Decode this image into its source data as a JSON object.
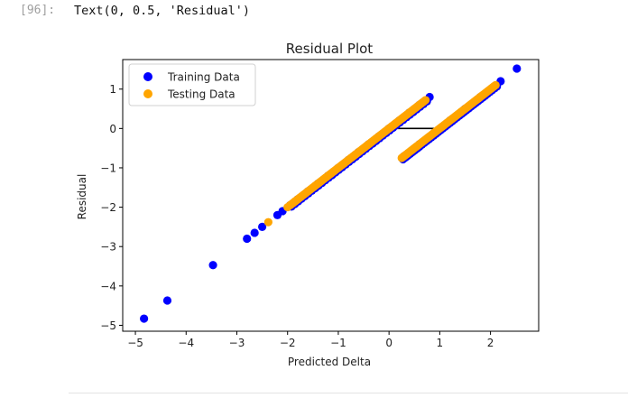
{
  "cell": {
    "prompt": "[96]:",
    "output_text": "Text(0, 0.5, 'Residual')"
  },
  "chart_data": {
    "type": "scatter",
    "title": "Residual Plot",
    "xlabel": "Predicted Delta",
    "ylabel": "Residual",
    "xlim": [
      -5.25,
      2.95
    ],
    "ylim": [
      -5.15,
      1.75
    ],
    "xticks": [
      -5,
      -4,
      -3,
      -2,
      -1,
      0,
      1,
      2
    ],
    "xtick_labels": [
      "−5",
      "−4",
      "−3",
      "−2",
      "−1",
      "0",
      "1",
      "2"
    ],
    "yticks": [
      -5,
      -4,
      -3,
      -2,
      -1,
      0,
      1
    ],
    "ytick_labels": [
      "−5",
      "−4",
      "−3",
      "−2",
      "−1",
      "0",
      "1"
    ],
    "legend_position": "top-left",
    "zero_line": {
      "x": [
        0,
        1
      ],
      "y": 0,
      "color": "#000000"
    },
    "series": [
      {
        "name": "Training Data",
        "color": "#0000ff",
        "points": [
          [
            -4.83,
            -4.83
          ],
          [
            -4.37,
            -4.37
          ],
          [
            -3.47,
            -3.47
          ],
          [
            -2.8,
            -2.8
          ],
          [
            -2.65,
            -2.65
          ],
          [
            -2.5,
            -2.5
          ],
          [
            -2.2,
            -2.2
          ],
          [
            -2.1,
            -2.1
          ],
          [
            -1.95,
            -1.95
          ],
          [
            -1.8,
            -1.8
          ],
          [
            -1.6,
            -1.6
          ],
          [
            -1.4,
            -1.4
          ],
          [
            -1.2,
            -1.2
          ],
          [
            -1.0,
            -1.0
          ],
          [
            -0.8,
            -0.8
          ],
          [
            -0.6,
            -0.6
          ],
          [
            -0.4,
            -0.4
          ],
          [
            -0.2,
            -0.2
          ],
          [
            0.0,
            0.0
          ],
          [
            0.2,
            0.2
          ],
          [
            0.4,
            0.4
          ],
          [
            0.6,
            0.6
          ],
          [
            0.8,
            0.8
          ],
          [
            0.3,
            -0.7
          ],
          [
            0.6,
            -0.4
          ],
          [
            0.9,
            -0.1
          ],
          [
            1.2,
            0.2
          ],
          [
            1.5,
            0.5
          ],
          [
            1.8,
            0.8
          ],
          [
            2.2,
            1.2
          ],
          [
            2.52,
            1.52
          ]
        ]
      },
      {
        "name": "Testing Data",
        "color": "#ffa500",
        "segments": [
          {
            "x_start": -1.95,
            "y_start": -1.95,
            "x_end": 0.72,
            "y_end": 0.72,
            "count": 90
          },
          {
            "x_start": 0.25,
            "y_start": -0.75,
            "x_end": 2.1,
            "y_end": 1.1,
            "count": 70
          }
        ],
        "points": [
          [
            -2.38,
            -2.38
          ],
          [
            -2.0,
            -2.0
          ],
          [
            -1.85,
            -1.85
          ]
        ]
      }
    ]
  }
}
